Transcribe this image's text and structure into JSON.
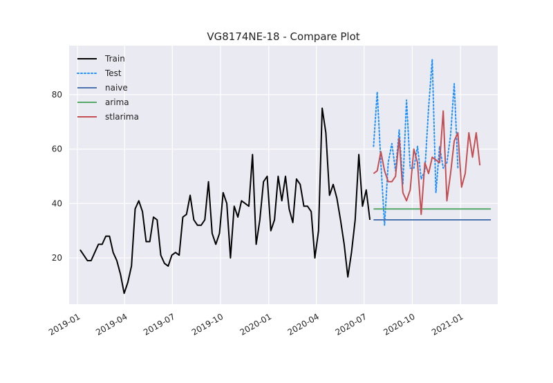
{
  "chart_data": {
    "type": "line",
    "title": "VG8174NE-18 - Compare Plot",
    "xlabel": "",
    "ylabel": "",
    "x_range": [
      "2018-12-16",
      "2021-03-13"
    ],
    "ylim": [
      3,
      98
    ],
    "grid": true,
    "legend_position": "top-left",
    "x_ticks": [
      "2019-01",
      "2019-04",
      "2019-07",
      "2019-10",
      "2020-01",
      "2020-04",
      "2020-07",
      "2020-10",
      "2021-01"
    ],
    "y_ticks": [
      20,
      40,
      60,
      80
    ],
    "series": [
      {
        "name": "Train",
        "color": "#000000",
        "style": "solid",
        "points": [
          [
            "2019-01-06",
            23
          ],
          [
            "2019-01-13",
            21
          ],
          [
            "2019-01-20",
            19
          ],
          [
            "2019-01-27",
            19
          ],
          [
            "2019-02-03",
            22
          ],
          [
            "2019-02-10",
            25
          ],
          [
            "2019-02-17",
            25
          ],
          [
            "2019-02-24",
            28
          ],
          [
            "2019-03-03",
            28
          ],
          [
            "2019-03-10",
            22
          ],
          [
            "2019-03-17",
            19
          ],
          [
            "2019-03-24",
            14
          ],
          [
            "2019-03-31",
            7
          ],
          [
            "2019-04-07",
            11
          ],
          [
            "2019-04-14",
            17
          ],
          [
            "2019-04-21",
            38
          ],
          [
            "2019-04-28",
            41
          ],
          [
            "2019-05-05",
            37
          ],
          [
            "2019-05-12",
            26
          ],
          [
            "2019-05-19",
            26
          ],
          [
            "2019-05-26",
            35
          ],
          [
            "2019-06-02",
            34
          ],
          [
            "2019-06-09",
            21
          ],
          [
            "2019-06-16",
            18
          ],
          [
            "2019-06-23",
            17
          ],
          [
            "2019-06-30",
            21
          ],
          [
            "2019-07-07",
            22
          ],
          [
            "2019-07-14",
            21
          ],
          [
            "2019-07-21",
            35
          ],
          [
            "2019-07-28",
            36
          ],
          [
            "2019-08-04",
            43
          ],
          [
            "2019-08-11",
            34
          ],
          [
            "2019-08-18",
            32
          ],
          [
            "2019-08-25",
            32
          ],
          [
            "2019-09-01",
            34
          ],
          [
            "2019-09-08",
            48
          ],
          [
            "2019-09-15",
            29
          ],
          [
            "2019-09-22",
            25
          ],
          [
            "2019-09-29",
            29
          ],
          [
            "2019-10-06",
            44
          ],
          [
            "2019-10-13",
            40
          ],
          [
            "2019-10-20",
            20
          ],
          [
            "2019-10-27",
            39
          ],
          [
            "2019-11-03",
            35
          ],
          [
            "2019-11-10",
            41
          ],
          [
            "2019-11-17",
            40
          ],
          [
            "2019-11-24",
            39
          ],
          [
            "2019-12-01",
            58
          ],
          [
            "2019-12-08",
            25
          ],
          [
            "2019-12-15",
            34
          ],
          [
            "2019-12-22",
            48
          ],
          [
            "2019-12-29",
            50
          ],
          [
            "2020-01-05",
            30
          ],
          [
            "2020-01-12",
            34
          ],
          [
            "2020-01-19",
            50
          ],
          [
            "2020-01-26",
            41
          ],
          [
            "2020-02-02",
            50
          ],
          [
            "2020-02-09",
            38
          ],
          [
            "2020-02-16",
            33
          ],
          [
            "2020-02-23",
            49
          ],
          [
            "2020-03-01",
            47
          ],
          [
            "2020-03-08",
            39
          ],
          [
            "2020-03-15",
            39
          ],
          [
            "2020-03-22",
            37
          ],
          [
            "2020-03-29",
            20
          ],
          [
            "2020-04-05",
            30
          ],
          [
            "2020-04-12",
            75
          ],
          [
            "2020-04-19",
            66
          ],
          [
            "2020-04-26",
            43
          ],
          [
            "2020-05-03",
            47
          ],
          [
            "2020-05-10",
            42
          ],
          [
            "2020-05-17",
            34
          ],
          [
            "2020-05-24",
            25
          ],
          [
            "2020-05-31",
            13
          ],
          [
            "2020-06-07",
            22
          ],
          [
            "2020-06-14",
            34
          ],
          [
            "2020-06-21",
            58
          ],
          [
            "2020-06-28",
            39
          ],
          [
            "2020-07-05",
            45
          ],
          [
            "2020-07-12",
            34
          ]
        ]
      },
      {
        "name": "Test",
        "color": "#1e90ff",
        "style": "dotted",
        "points": [
          [
            "2020-07-19",
            61
          ],
          [
            "2020-07-26",
            81
          ],
          [
            "2020-08-02",
            55
          ],
          [
            "2020-08-09",
            32
          ],
          [
            "2020-08-16",
            55
          ],
          [
            "2020-08-23",
            62
          ],
          [
            "2020-08-30",
            52
          ],
          [
            "2020-09-06",
            67
          ],
          [
            "2020-09-13",
            47
          ],
          [
            "2020-09-20",
            78
          ],
          [
            "2020-09-27",
            53
          ],
          [
            "2020-10-04",
            53
          ],
          [
            "2020-10-11",
            61
          ],
          [
            "2020-10-18",
            49
          ],
          [
            "2020-10-25",
            52
          ],
          [
            "2020-11-01",
            75
          ],
          [
            "2020-11-08",
            93
          ],
          [
            "2020-11-15",
            44
          ],
          [
            "2020-11-22",
            61
          ],
          [
            "2020-11-29",
            53
          ],
          [
            "2020-12-06",
            55
          ],
          [
            "2020-12-13",
            65
          ],
          [
            "2020-12-20",
            84
          ],
          [
            "2020-12-27",
            53
          ]
        ]
      },
      {
        "name": "naive",
        "color": "#4c72b0",
        "style": "solid",
        "points": [
          [
            "2020-07-19",
            34
          ],
          [
            "2021-02-28",
            34
          ]
        ]
      },
      {
        "name": "arima",
        "color": "#55a868",
        "style": "solid",
        "points": [
          [
            "2020-07-19",
            38
          ],
          [
            "2021-02-28",
            38
          ]
        ]
      },
      {
        "name": "stlarima",
        "color": "#c44e52",
        "style": "solid",
        "points": [
          [
            "2020-07-19",
            51
          ],
          [
            "2020-07-26",
            52
          ],
          [
            "2020-08-02",
            59
          ],
          [
            "2020-08-09",
            52
          ],
          [
            "2020-08-16",
            48
          ],
          [
            "2020-08-23",
            48
          ],
          [
            "2020-08-30",
            50
          ],
          [
            "2020-09-06",
            64
          ],
          [
            "2020-09-13",
            44
          ],
          [
            "2020-09-20",
            41
          ],
          [
            "2020-09-27",
            45
          ],
          [
            "2020-10-04",
            60
          ],
          [
            "2020-10-11",
            55
          ],
          [
            "2020-10-18",
            36
          ],
          [
            "2020-10-25",
            55
          ],
          [
            "2020-11-01",
            51
          ],
          [
            "2020-11-08",
            57
          ],
          [
            "2020-11-15",
            56
          ],
          [
            "2020-11-22",
            55
          ],
          [
            "2020-11-29",
            74
          ],
          [
            "2020-12-06",
            41
          ],
          [
            "2020-12-13",
            51
          ],
          [
            "2020-12-20",
            63
          ],
          [
            "2020-12-27",
            66
          ],
          [
            "2021-01-03",
            46
          ],
          [
            "2021-01-10",
            51
          ],
          [
            "2021-01-17",
            66
          ],
          [
            "2021-01-24",
            57
          ],
          [
            "2021-01-31",
            66
          ],
          [
            "2021-02-07",
            54
          ]
        ]
      }
    ]
  }
}
